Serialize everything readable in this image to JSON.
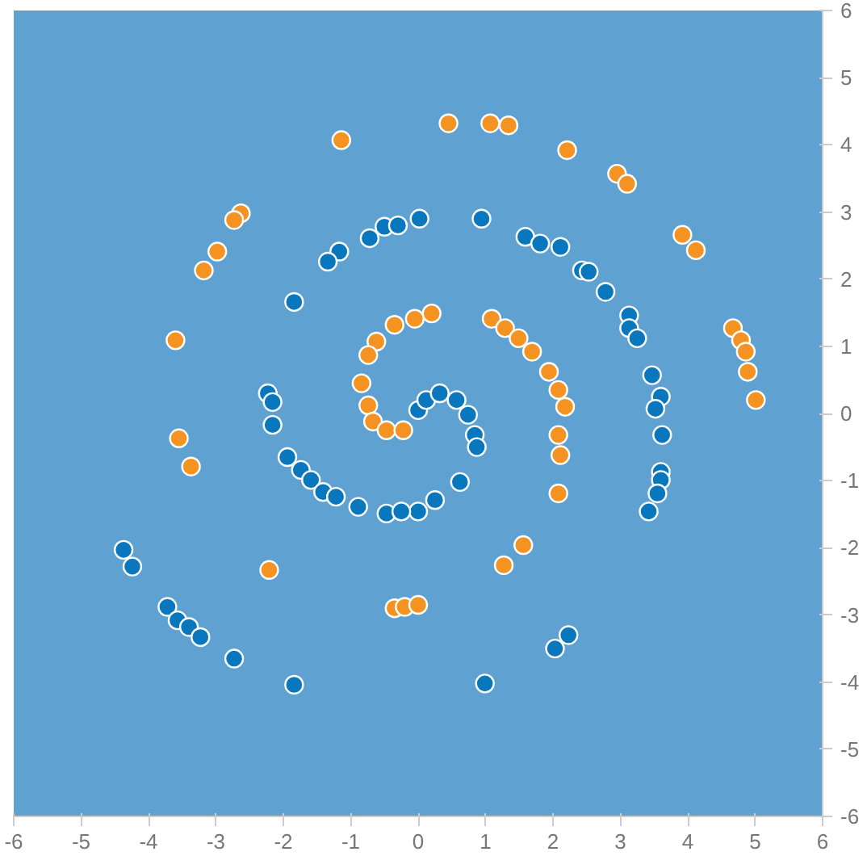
{
  "chart_data": {
    "type": "scatter",
    "xlim": [
      -6,
      6
    ],
    "ylim": [
      -6,
      6
    ],
    "xticks": [
      -6,
      -5,
      -4,
      -3,
      -2,
      -1,
      0,
      1,
      2,
      3,
      4,
      5,
      6
    ],
    "yticks": [
      -6,
      -5,
      -4,
      -3,
      -2,
      -1,
      0,
      1,
      2,
      3,
      4,
      5,
      6
    ],
    "grid": false,
    "marker": "circle",
    "series": [
      {
        "color": "#f59322",
        "x": [
          -1.14,
          0.45,
          1.07,
          1.34,
          2.21,
          2.95,
          3.1,
          3.92,
          4.12,
          4.67,
          4.79,
          4.86,
          4.89,
          5.01,
          -2.63,
          -2.73,
          -2.98,
          -3.18,
          -3.6,
          -3.55,
          -3.37,
          -2.21,
          1.09,
          1.29,
          1.49,
          1.69,
          1.94,
          2.08,
          2.18,
          2.08,
          2.11,
          2.08,
          1.56,
          1.27,
          -0.35,
          -0.2,
          0,
          -0.05,
          -0.35,
          -0.62,
          -0.74,
          -0.84,
          -0.74,
          -0.67,
          -0.47,
          -0.22,
          0.2
        ],
        "values": [
          4.07,
          4.32,
          4.32,
          4.29,
          3.92,
          3.57,
          3.42,
          2.66,
          2.43,
          1.27,
          1.09,
          0.92,
          0.62,
          0.2,
          2.98,
          2.88,
          2.41,
          2.13,
          1.09,
          -0.37,
          -0.79,
          -2.33,
          1.41,
          1.27,
          1.12,
          0.92,
          0.62,
          0.35,
          0.1,
          -0.32,
          -0.62,
          -1.19,
          -1.96,
          -2.26,
          -2.9,
          -2.88,
          -2.85,
          1.41,
          1.32,
          1.07,
          0.87,
          0.45,
          0.12,
          -0.12,
          -0.25,
          -0.25,
          1.49
        ]
      },
      {
        "color": "#0877bd",
        "x": [
          -0.72,
          -0.5,
          -0.3,
          0.02,
          -1.17,
          -1.34,
          -1.84,
          -2.23,
          -2.16,
          0.94,
          1.59,
          1.81,
          2.11,
          2.43,
          2.53,
          2.78,
          3.13,
          3.13,
          3.25,
          3.47,
          3.6,
          3.52,
          3.62,
          3.6,
          3.6,
          3.55,
          3.42,
          2.23,
          2.03,
          0.99,
          0,
          0.12,
          0.32,
          0.57,
          0.74,
          0.84,
          0.87,
          0.62,
          0.25,
          0,
          -2.16,
          -1.94,
          -1.74,
          -1.59,
          -1.41,
          -1.22,
          -0.89,
          -0.47,
          -0.25,
          -4.37,
          -4.24,
          -3.72,
          -3.57,
          -3.4,
          -3.23,
          -2.73,
          -1.84
        ],
        "values": [
          2.61,
          2.78,
          2.8,
          2.9,
          2.41,
          2.26,
          1.66,
          0.3,
          0.17,
          2.9,
          2.63,
          2.53,
          2.48,
          2.13,
          2.11,
          1.81,
          1.46,
          1.27,
          1.12,
          0.57,
          0.25,
          0.07,
          -0.32,
          -0.87,
          -0.99,
          -1.19,
          -1.46,
          -3.3,
          -3.5,
          -4.02,
          0.05,
          0.2,
          0.3,
          0.2,
          -0.02,
          -0.32,
          -0.5,
          -1.02,
          -1.29,
          -1.46,
          -0.17,
          -0.65,
          -0.84,
          -0.99,
          -1.17,
          -1.24,
          -1.39,
          -1.49,
          -1.46,
          -2.03,
          -2.28,
          -2.88,
          -3.08,
          -3.18,
          -3.33,
          -3.65,
          -4.04
        ]
      }
    ]
  }
}
